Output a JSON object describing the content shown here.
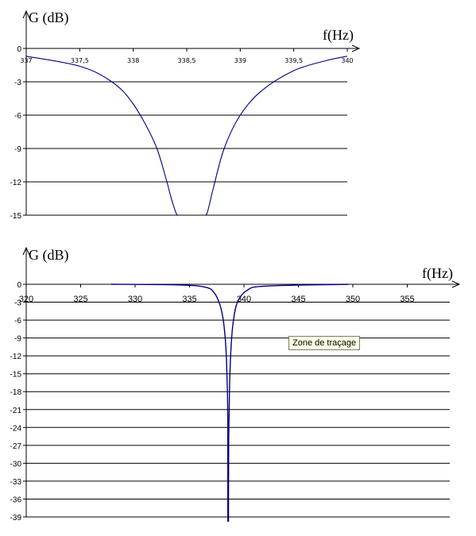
{
  "tooltip": "Zone de traçage",
  "chart_data": [
    {
      "type": "line",
      "ylabel": "G (dB)",
      "xlabel": "f(Hz)",
      "xlim": [
        337,
        340
      ],
      "ylim": [
        -15,
        0
      ],
      "x_ticks": [
        "337",
        "337,5",
        "338",
        "338,5",
        "339",
        "339,5",
        "340"
      ],
      "y_ticks": [
        "0",
        "-3",
        "-6",
        "-9",
        "-12",
        "-15"
      ],
      "grid": "horizontal",
      "series": [
        {
          "color": "#000080",
          "x": [
            337,
            337.5,
            337.8,
            338.0,
            338.2,
            338.3,
            338.35,
            338.4,
            338.42
          ],
          "y": [
            -0.7,
            -1.6,
            -3.0,
            -5.0,
            -8.5,
            -11.5,
            -13.3,
            -14.8,
            -15
          ]
        },
        {
          "color": "#000080",
          "x": [
            338.68,
            338.7,
            338.75,
            338.85,
            339.0,
            339.2,
            339.5,
            339.8,
            340
          ],
          "y": [
            -15,
            -14.5,
            -12.5,
            -9.0,
            -6.0,
            -3.8,
            -2.0,
            -1.1,
            -0.7
          ]
        }
      ]
    },
    {
      "type": "line",
      "ylabel": "G (dB)",
      "xlabel": "f(Hz)",
      "xlim": [
        320,
        360
      ],
      "ylim": [
        -39,
        0
      ],
      "x_ticks": [
        "320",
        "325",
        "330",
        "335",
        "340",
        "345",
        "350",
        "355"
      ],
      "y_ticks": [
        "0",
        "-3",
        "-6",
        "-9",
        "-12",
        "-15",
        "-18",
        "-21",
        "-24",
        "-27",
        "-30",
        "-33",
        "-36",
        "-39"
      ],
      "grid": "horizontal",
      "series": [
        {
          "color": "#000080",
          "x": [
            327.8,
            334,
            336.5,
            337.3,
            337.8,
            338.1,
            338.3,
            338.4,
            338.48,
            338.52,
            338.55,
            338.6,
            338.68,
            338.8,
            339.0,
            339.4,
            340.3,
            342,
            349.6
          ],
          "y": [
            0,
            -0.1,
            -0.5,
            -1.5,
            -3.5,
            -6,
            -9.5,
            -13,
            -18,
            -24,
            -39,
            -26,
            -17,
            -11,
            -6.5,
            -3,
            -1.0,
            -0.3,
            0
          ]
        }
      ]
    }
  ]
}
